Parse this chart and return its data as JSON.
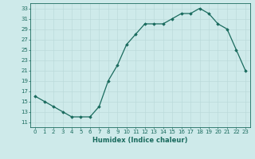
{
  "x": [
    0,
    1,
    2,
    3,
    4,
    5,
    6,
    7,
    8,
    9,
    10,
    11,
    12,
    13,
    14,
    15,
    16,
    17,
    18,
    19,
    20,
    21,
    22,
    23
  ],
  "y": [
    16,
    15,
    14,
    13,
    12,
    12,
    12,
    14,
    19,
    22,
    26,
    28,
    30,
    30,
    30,
    31,
    32,
    32,
    33,
    32,
    30,
    29,
    25,
    21
  ],
  "line_color": "#1a6b5e",
  "marker": "D",
  "marker_size": 1.8,
  "linewidth": 0.9,
  "xlabel": "Humidex (Indice chaleur)",
  "xlim": [
    -0.5,
    23.5
  ],
  "ylim": [
    10,
    34
  ],
  "yticks": [
    11,
    13,
    15,
    17,
    19,
    21,
    23,
    25,
    27,
    29,
    31,
    33
  ],
  "xticks": [
    0,
    1,
    2,
    3,
    4,
    5,
    6,
    7,
    8,
    9,
    10,
    11,
    12,
    13,
    14,
    15,
    16,
    17,
    18,
    19,
    20,
    21,
    22,
    23
  ],
  "xtick_labels": [
    "0",
    "1",
    "2",
    "3",
    "4",
    "5",
    "6",
    "7",
    "8",
    "9",
    "10",
    "11",
    "12",
    "13",
    "14",
    "15",
    "16",
    "17",
    "18",
    "19",
    "20",
    "21",
    "22",
    "23"
  ],
  "bg_color": "#ceeaea",
  "grid_color": "#b8d8d8",
  "line_border_color": "#5aada0",
  "tick_fontsize": 5.0,
  "xlabel_fontsize": 6.0,
  "tick_color": "#1a6b5e",
  "label_color": "#1a6b5e",
  "spine_color": "#1a6b5e"
}
